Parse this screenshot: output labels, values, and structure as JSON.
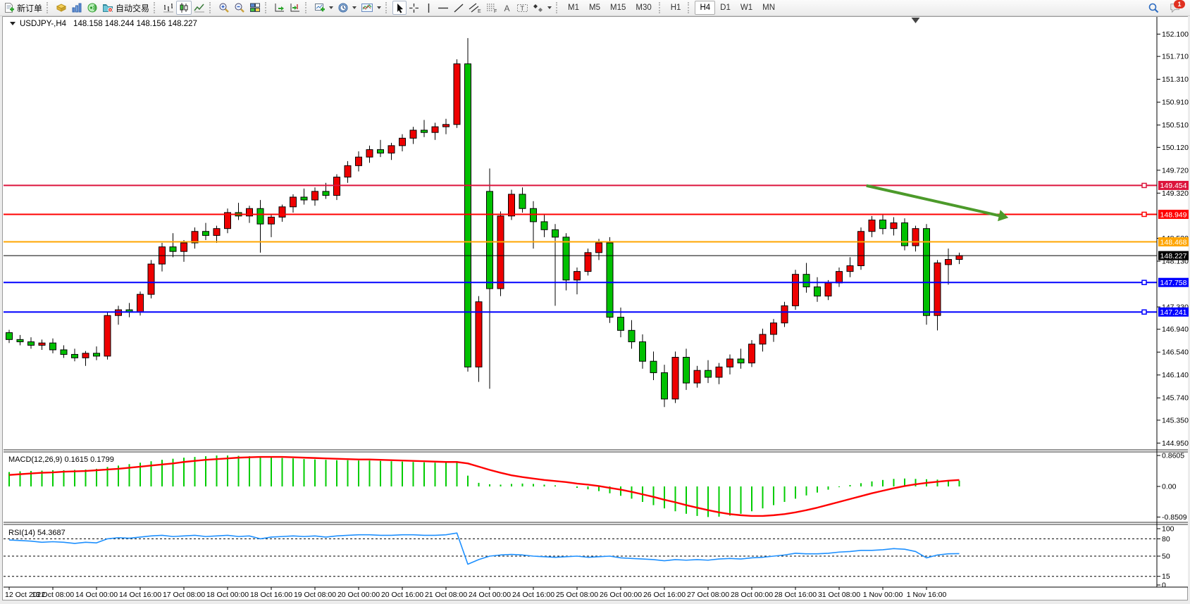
{
  "toolbar": {
    "new_order_label": "新订单",
    "autotrade_label": "自动交易",
    "timeframes": [
      "M1",
      "M5",
      "M15",
      "M30",
      "H1",
      "H4",
      "D1",
      "W1",
      "MN"
    ],
    "active_timeframe": "H4",
    "notification_count": "1"
  },
  "chart": {
    "title": {
      "symbol": "USDJPY-,H4",
      "ohlc": "148.158 148.244 148.156 148.227"
    },
    "macd_label": "MACD(12,26,9) 0.1615 0.1799",
    "rsi_label": "RSI(14) 54.3687"
  },
  "chart_data": {
    "type": "candlestick",
    "title": "USDJPY- H4",
    "symbol": "USDJPY-",
    "period": "H4",
    "ohlc_display": {
      "open": "148.158",
      "high": "148.244",
      "low": "148.156",
      "close": "148.227"
    },
    "grid": false,
    "x_axis": {
      "labels": [
        "12 Oct 2022",
        "13 Oct 08:00",
        "14 Oct 00:00",
        "14 Oct 16:00",
        "17 Oct 08:00",
        "18 Oct 00:00",
        "18 Oct 16:00",
        "19 Oct 08:00",
        "20 Oct 00:00",
        "20 Oct 16:00",
        "21 Oct 08:00",
        "24 Oct 00:00",
        "24 Oct 16:00",
        "25 Oct 08:00",
        "26 Oct 00:00",
        "26 Oct 16:00",
        "27 Oct 08:00",
        "28 Oct 00:00",
        "28 Oct 16:00",
        "31 Oct 08:00",
        "1 Nov 00:00",
        "1 Nov 16:00"
      ],
      "label_every_n_candles": 4
    },
    "y_axis": {
      "ticks": [
        "152.100",
        "151.710",
        "151.310",
        "150.910",
        "150.510",
        "150.120",
        "149.720",
        "149.320",
        "148.530",
        "148.130",
        "147.330",
        "146.940",
        "146.540",
        "146.140",
        "145.740",
        "145.350",
        "144.950"
      ],
      "range": [
        144.84,
        152.41
      ]
    },
    "candles": [
      [
        146.88,
        146.93,
        146.7,
        146.76
      ],
      [
        146.76,
        146.84,
        146.66,
        146.72
      ],
      [
        146.72,
        146.8,
        146.6,
        146.66
      ],
      [
        146.66,
        146.76,
        146.58,
        146.7
      ],
      [
        146.7,
        146.78,
        146.52,
        146.58
      ],
      [
        146.58,
        146.66,
        146.44,
        146.5
      ],
      [
        146.5,
        146.6,
        146.38,
        146.44
      ],
      [
        146.44,
        146.56,
        146.3,
        146.52
      ],
      [
        146.52,
        146.64,
        146.4,
        146.47
      ],
      [
        146.47,
        147.25,
        146.41,
        147.18
      ],
      [
        147.18,
        147.35,
        147.02,
        147.28
      ],
      [
        147.28,
        147.4,
        147.15,
        147.24
      ],
      [
        147.24,
        147.6,
        147.18,
        147.55
      ],
      [
        147.55,
        148.15,
        147.48,
        148.08
      ],
      [
        148.08,
        148.45,
        147.95,
        148.38
      ],
      [
        148.38,
        148.62,
        148.2,
        148.3
      ],
      [
        148.3,
        148.5,
        148.12,
        148.45
      ],
      [
        148.45,
        148.72,
        148.35,
        148.65
      ],
      [
        148.65,
        148.8,
        148.5,
        148.58
      ],
      [
        148.58,
        148.75,
        148.45,
        148.7
      ],
      [
        148.7,
        149.05,
        148.62,
        148.98
      ],
      [
        148.98,
        149.15,
        148.85,
        148.92
      ],
      [
        148.92,
        149.1,
        148.8,
        149.05
      ],
      [
        149.05,
        149.2,
        148.28,
        148.78
      ],
      [
        148.78,
        148.95,
        148.55,
        148.9
      ],
      [
        148.9,
        149.12,
        148.82,
        149.08
      ],
      [
        149.08,
        149.3,
        148.98,
        149.25
      ],
      [
        149.25,
        149.4,
        149.12,
        149.2
      ],
      [
        149.2,
        149.42,
        149.1,
        149.35
      ],
      [
        149.35,
        149.5,
        149.22,
        149.28
      ],
      [
        149.28,
        149.65,
        149.2,
        149.6
      ],
      [
        149.6,
        149.88,
        149.5,
        149.8
      ],
      [
        149.8,
        150.05,
        149.7,
        149.95
      ],
      [
        149.95,
        150.15,
        149.85,
        150.08
      ],
      [
        150.08,
        150.25,
        149.95,
        150.02
      ],
      [
        150.02,
        150.2,
        149.9,
        150.15
      ],
      [
        150.15,
        150.35,
        150.05,
        150.28
      ],
      [
        150.28,
        150.48,
        150.18,
        150.42
      ],
      [
        150.42,
        150.6,
        150.3,
        150.38
      ],
      [
        150.38,
        150.55,
        150.25,
        150.48
      ],
      [
        150.48,
        150.62,
        150.35,
        150.52
      ],
      [
        150.52,
        151.66,
        150.46,
        151.58
      ],
      [
        151.58,
        152.03,
        146.2,
        146.28
      ],
      [
        146.28,
        147.52,
        146.02,
        147.42
      ],
      [
        149.35,
        149.75,
        145.9,
        147.65
      ],
      [
        147.65,
        149.0,
        147.52,
        148.92
      ],
      [
        148.92,
        149.38,
        148.85,
        149.3
      ],
      [
        149.3,
        149.42,
        148.98,
        149.05
      ],
      [
        149.05,
        149.18,
        148.35,
        148.82
      ],
      [
        148.82,
        148.95,
        148.55,
        148.68
      ],
      [
        148.68,
        148.78,
        147.35,
        148.55
      ],
      [
        148.55,
        148.62,
        147.62,
        147.8
      ],
      [
        147.8,
        148.02,
        147.55,
        147.95
      ],
      [
        147.95,
        148.35,
        147.88,
        148.28
      ],
      [
        148.28,
        148.52,
        148.15,
        148.45
      ],
      [
        148.45,
        148.55,
        147.05,
        147.15
      ],
      [
        147.15,
        147.32,
        146.8,
        146.92
      ],
      [
        146.92,
        147.1,
        146.6,
        146.72
      ],
      [
        146.72,
        146.85,
        146.25,
        146.38
      ],
      [
        146.38,
        146.55,
        146.05,
        146.18
      ],
      [
        146.18,
        146.32,
        145.58,
        145.72
      ],
      [
        145.72,
        146.55,
        145.65,
        146.45
      ],
      [
        146.45,
        146.6,
        145.88,
        146.0
      ],
      [
        146.0,
        146.3,
        145.92,
        146.22
      ],
      [
        146.22,
        146.4,
        146.0,
        146.1
      ],
      [
        146.1,
        146.35,
        145.98,
        146.28
      ],
      [
        146.28,
        146.5,
        146.15,
        146.42
      ],
      [
        146.42,
        146.6,
        146.25,
        146.35
      ],
      [
        146.35,
        146.75,
        146.28,
        146.68
      ],
      [
        146.68,
        146.95,
        146.55,
        146.85
      ],
      [
        146.85,
        147.12,
        146.72,
        147.05
      ],
      [
        147.05,
        147.42,
        146.98,
        147.35
      ],
      [
        147.35,
        147.98,
        147.28,
        147.9
      ],
      [
        147.9,
        148.1,
        147.58,
        147.68
      ],
      [
        147.68,
        147.85,
        147.42,
        147.52
      ],
      [
        147.52,
        147.8,
        147.45,
        147.75
      ],
      [
        147.75,
        148.02,
        147.68,
        147.95
      ],
      [
        147.95,
        148.2,
        147.85,
        148.05
      ],
      [
        148.05,
        148.72,
        147.98,
        148.65
      ],
      [
        148.65,
        148.92,
        148.55,
        148.85
      ],
      [
        148.85,
        148.95,
        148.6,
        148.7
      ],
      [
        148.7,
        148.9,
        148.58,
        148.8
      ],
      [
        148.8,
        148.88,
        148.32,
        148.4
      ],
      [
        148.4,
        148.75,
        148.3,
        148.7
      ],
      [
        148.7,
        148.78,
        147.02,
        147.18
      ],
      [
        147.18,
        148.15,
        146.92,
        148.1
      ],
      [
        148.07,
        148.35,
        147.72,
        148.16
      ],
      [
        148.16,
        148.28,
        148.08,
        148.227
      ]
    ],
    "horizontal_lines": [
      {
        "price": 149.454,
        "label": "149.454",
        "color": "#dc143c",
        "handle": true
      },
      {
        "price": 148.949,
        "label": "148.949",
        "color": "#ff0000",
        "handle": true
      },
      {
        "price": 148.468,
        "label": "148.468",
        "color": "#ffa500",
        "handle": false
      },
      {
        "price": 148.227,
        "label": "148.227",
        "color": "#000000",
        "handle": false
      },
      {
        "price": 147.758,
        "label": "147.758",
        "color": "#0000ff",
        "handle": true
      },
      {
        "price": 147.241,
        "label": "147.241",
        "color": "#0000ff",
        "handle": true
      }
    ],
    "trend_arrow": {
      "from_index": 78.5,
      "from_price": 149.45,
      "to_index": 91.5,
      "to_price": 148.89,
      "color": "#4c9a2a"
    },
    "shift_marker_index": 83,
    "colors": {
      "up": "#ee0000",
      "down": "#00c000",
      "outline": "#000000",
      "background": "#ffffff",
      "axis_text": "#000000"
    },
    "macd": {
      "label": "MACD(12,26,9) 0.1615 0.1799",
      "main_value": "0.1615",
      "signal_value": "0.1799",
      "ticks": [
        "0.8605",
        "0.00",
        "-0.8509"
      ],
      "range": [
        -0.8509,
        0.8605
      ],
      "histogram": [
        0.4,
        0.42,
        0.43,
        0.44,
        0.45,
        0.45,
        0.46,
        0.47,
        0.49,
        0.54,
        0.58,
        0.62,
        0.66,
        0.7,
        0.74,
        0.77,
        0.8,
        0.82,
        0.84,
        0.86,
        0.86,
        0.85,
        0.84,
        0.82,
        0.81,
        0.79,
        0.78,
        0.76,
        0.75,
        0.74,
        0.73,
        0.73,
        0.72,
        0.72,
        0.71,
        0.7,
        0.69,
        0.68,
        0.67,
        0.66,
        0.66,
        0.68,
        0.3,
        0.1,
        0.06,
        0.05,
        0.07,
        0.08,
        0.07,
        0.05,
        0.03,
        0.0,
        -0.04,
        -0.08,
        -0.13,
        -0.19,
        -0.26,
        -0.34,
        -0.43,
        -0.52,
        -0.61,
        -0.69,
        -0.76,
        -0.82,
        -0.85,
        -0.84,
        -0.81,
        -0.76,
        -0.69,
        -0.61,
        -0.52,
        -0.43,
        -0.34,
        -0.25,
        -0.17,
        -0.09,
        -0.02,
        0.04,
        0.09,
        0.14,
        0.18,
        0.21,
        0.22,
        0.21,
        0.2,
        0.19,
        0.17,
        0.1615
      ],
      "signal_line": [
        0.32,
        0.34,
        0.36,
        0.38,
        0.39,
        0.41,
        0.42,
        0.43,
        0.45,
        0.47,
        0.49,
        0.52,
        0.55,
        0.58,
        0.61,
        0.64,
        0.68,
        0.71,
        0.74,
        0.76,
        0.78,
        0.8,
        0.81,
        0.82,
        0.82,
        0.82,
        0.81,
        0.8,
        0.79,
        0.78,
        0.77,
        0.76,
        0.75,
        0.75,
        0.74,
        0.73,
        0.72,
        0.71,
        0.7,
        0.69,
        0.68,
        0.68,
        0.64,
        0.55,
        0.46,
        0.38,
        0.31,
        0.26,
        0.22,
        0.18,
        0.15,
        0.12,
        0.08,
        0.05,
        0.01,
        -0.04,
        -0.09,
        -0.15,
        -0.22,
        -0.29,
        -0.37,
        -0.44,
        -0.52,
        -0.59,
        -0.66,
        -0.72,
        -0.77,
        -0.8,
        -0.82,
        -0.82,
        -0.8,
        -0.77,
        -0.72,
        -0.66,
        -0.59,
        -0.51,
        -0.43,
        -0.35,
        -0.27,
        -0.19,
        -0.12,
        -0.05,
        0.01,
        0.06,
        0.1,
        0.13,
        0.16,
        0.1799
      ],
      "colors": {
        "histogram": "#00cc00",
        "signal": "#ff0000"
      }
    },
    "rsi": {
      "label": "RSI(14) 54.3687",
      "value": "54.3687",
      "ticks": [
        "100",
        "80",
        "50",
        "15",
        "0"
      ],
      "levels": [
        80,
        50,
        15
      ],
      "series": [
        78,
        77,
        76,
        74,
        75,
        74,
        72,
        74,
        73,
        80,
        82,
        81,
        83,
        85,
        86,
        84,
        85,
        86,
        84,
        85,
        86,
        84,
        85,
        80,
        83,
        84,
        85,
        84,
        85,
        83,
        85,
        86,
        87,
        87,
        86,
        86,
        87,
        87,
        86,
        86,
        87,
        90,
        36,
        44,
        50,
        52,
        53,
        52,
        50,
        49,
        48,
        49,
        50,
        48,
        49,
        50,
        47,
        46,
        45,
        44,
        42,
        44,
        43,
        44,
        43,
        45,
        46,
        45,
        47,
        48,
        50,
        52,
        55,
        54,
        54,
        55,
        57,
        58,
        60,
        60,
        61,
        63,
        62,
        58,
        47,
        52,
        54,
        54.37
      ],
      "color": "#1e90ff"
    }
  }
}
